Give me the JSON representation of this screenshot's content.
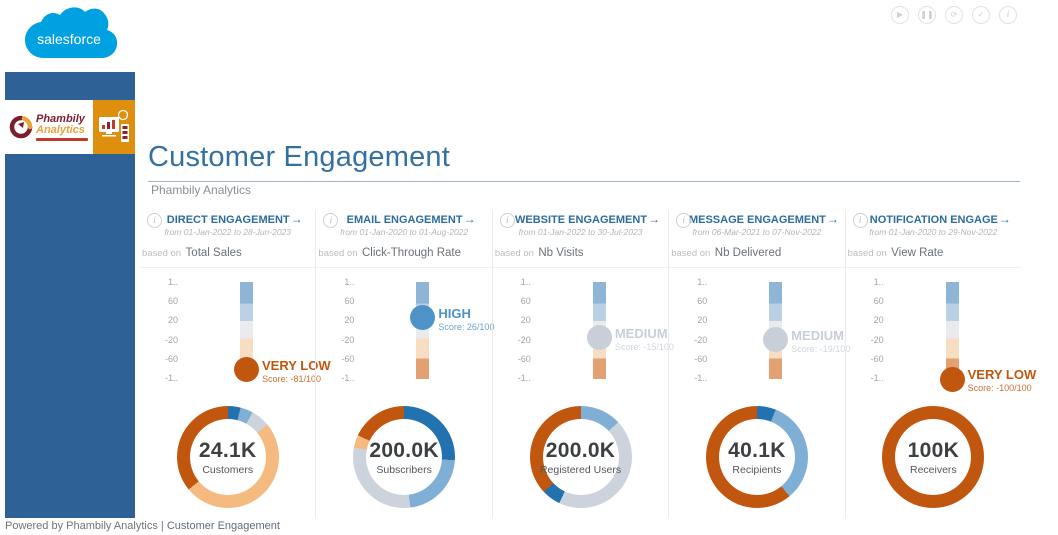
{
  "salesforce": {
    "logo_text": "salesforce"
  },
  "toolbar": {
    "icons": [
      {
        "name": "play",
        "glyph": "▶"
      },
      {
        "name": "pause",
        "glyph": "❚❚"
      },
      {
        "name": "sync",
        "glyph": "⟳"
      },
      {
        "name": "check",
        "glyph": "✓"
      },
      {
        "name": "info",
        "glyph": "i"
      }
    ]
  },
  "icons": {
    "info": "i"
  },
  "sidebar": {
    "brand_top": "Phambily",
    "brand_bottom": "Analytics"
  },
  "header": {
    "title": "Customer Engagement",
    "subtitle": "Phambily Analytics"
  },
  "footer": {
    "powered_by": "Powered by Phambily Analytics",
    "divider": " | ",
    "page_name": "Customer Engagement"
  },
  "gauge": {
    "axis_ticks": [
      "1..",
      "60",
      "20",
      "-20",
      "-60",
      "-1.."
    ],
    "min": -100,
    "max": 100
  },
  "palette": {
    "dark_orange": "#C1570E",
    "light_orange": "#F5BA7F",
    "gray": "#CDD3DC",
    "light_blue": "#7FAFD4",
    "dark_blue": "#2272B0"
  },
  "levels": {
    "very_low": {
      "label": "VERY LOW",
      "color": "#C1570E"
    },
    "medium": {
      "label": "MEDIUM",
      "color": "#C9CFD8"
    },
    "high": {
      "label": "HIGH",
      "color": "#4E93C8"
    }
  },
  "chart_data": {
    "type": "dashboard",
    "metrics": [
      {
        "title": "DIRECT ENGAGEMENT",
        "arrow": "→",
        "date_range": "from 01-Jan-2022 to 28-Jun-2023",
        "based_on_label": "based on",
        "based_on": "Total Sales",
        "score": -81,
        "score_text": "Score: -81/100",
        "level": "VERY LOW",
        "level_key": "very_low",
        "gauge_range": [
          -100,
          100
        ],
        "donut": {
          "total": "24.1K",
          "label": "Customers",
          "segments": [
            {
              "color": "dark_blue",
              "pct": 4
            },
            {
              "color": "light_blue",
              "pct": 4
            },
            {
              "color": "gray",
              "pct": 6
            },
            {
              "color": "light_orange",
              "pct": 50
            },
            {
              "color": "dark_orange",
              "pct": 36
            }
          ]
        }
      },
      {
        "title": "EMAIL ENGAGEMENT",
        "arrow": "→",
        "date_range": "from 01-Jan-2020 to 01-Aug-2022",
        "based_on_label": "based on",
        "based_on": "Click-Through Rate",
        "score": 26,
        "score_text": "Score: 26/100",
        "level": "HIGH",
        "level_key": "high",
        "gauge_range": [
          -100,
          100
        ],
        "donut": {
          "total": "200.0K",
          "label": "Subscribers",
          "segments": [
            {
              "color": "dark_blue",
              "pct": 26
            },
            {
              "color": "light_blue",
              "pct": 22
            },
            {
              "color": "gray",
              "pct": 30
            },
            {
              "color": "light_orange",
              "pct": 4
            },
            {
              "color": "dark_orange",
              "pct": 18
            }
          ]
        }
      },
      {
        "title": "WEBSITE ENGAGEMENT",
        "arrow": "→",
        "date_range": "from 01-Jan-2022 to 30-Jul-2023",
        "based_on_label": "based on",
        "based_on": "Nb Visits",
        "score": -15,
        "score_text": "Score: -15/100",
        "level": "MEDIUM",
        "level_key": "medium",
        "gauge_range": [
          -100,
          100
        ],
        "donut": {
          "total": "200.0K",
          "label": "Registered Users",
          "segments": [
            {
              "color": "light_blue",
              "pct": 13
            },
            {
              "color": "gray",
              "pct": 44
            },
            {
              "color": "dark_blue",
              "pct": 6
            },
            {
              "color": "dark_orange",
              "pct": 37
            }
          ]
        }
      },
      {
        "title": "MESSAGE ENGAGEMENT",
        "arrow": "→",
        "date_range": "from 06-Mar-2021 to 07-Nov-2022",
        "based_on_label": "based on",
        "based_on": "Nb Delivered",
        "score": -19,
        "score_text": "Score: -19/100",
        "level": "MEDIUM",
        "level_key": "medium",
        "gauge_range": [
          -100,
          100
        ],
        "donut": {
          "total": "40.1K",
          "label": "Recipients",
          "segments": [
            {
              "color": "dark_blue",
              "pct": 6
            },
            {
              "color": "light_blue",
              "pct": 33
            },
            {
              "color": "dark_orange",
              "pct": 61
            }
          ]
        }
      },
      {
        "title": "NOTIFICATION ENGAGE",
        "arrow": "→",
        "date_range": "from 01-Jan-2020 to 29-Nov-2022",
        "based_on_label": "based on",
        "based_on": "View Rate",
        "score": -100,
        "score_text": "Score: -100/100",
        "level": "VERY LOW",
        "level_key": "very_low",
        "gauge_range": [
          -100,
          100
        ],
        "donut": {
          "total": "100K",
          "label": "Receivers",
          "segments": [
            {
              "color": "dark_orange",
              "pct": 100
            }
          ]
        }
      }
    ]
  }
}
